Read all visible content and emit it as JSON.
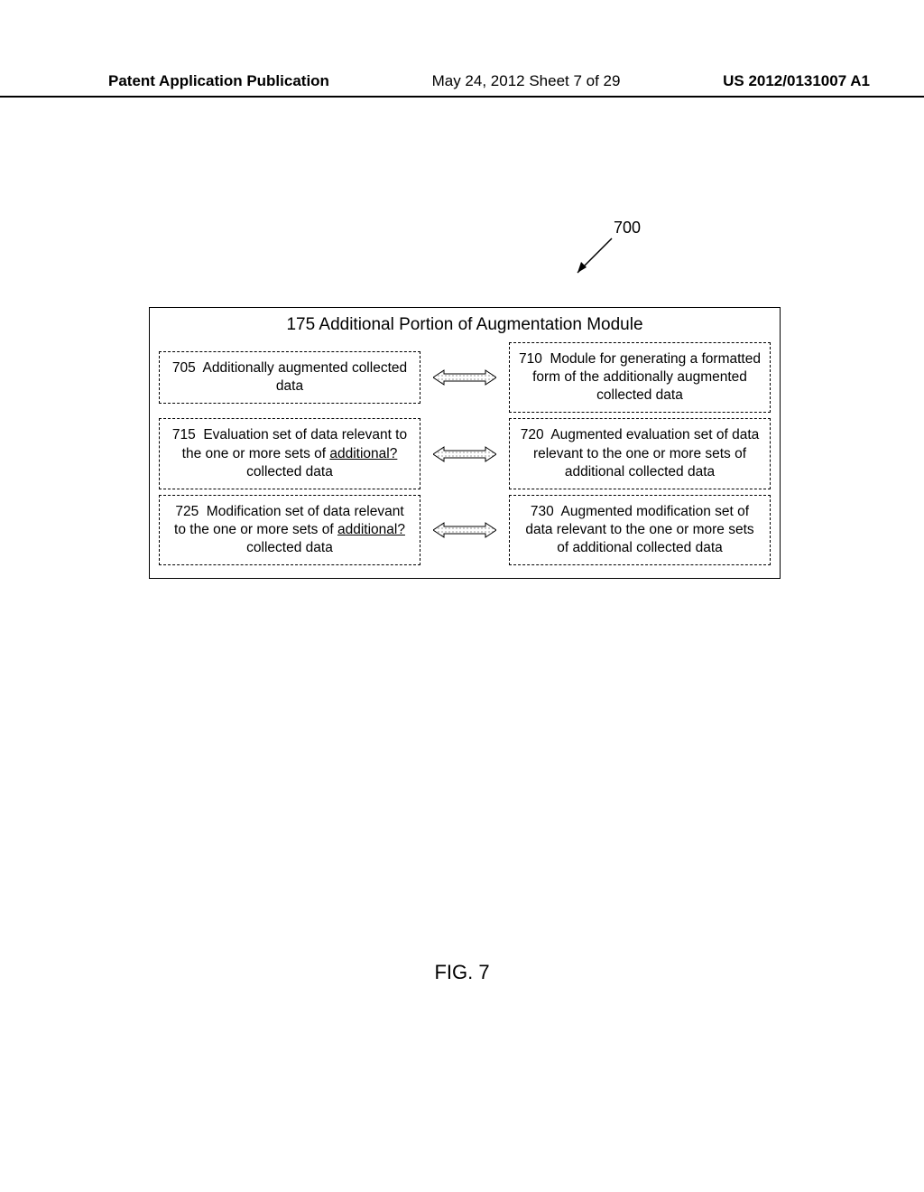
{
  "header": {
    "left": "Patent Application Publication",
    "mid": "May 24, 2012  Sheet 7 of 29",
    "right": "US 2012/0131007 A1"
  },
  "figref": "700",
  "module": {
    "title": "175 Additional Portion of  Augmentation Module",
    "rows": [
      {
        "left": {
          "num": "705",
          "text": "Additionally augmented collected data",
          "underline_word": null
        },
        "right": {
          "num": "710",
          "text": "Module for generating a formatted form of the additionally augmented collected data",
          "underline_word": null
        }
      },
      {
        "left": {
          "num": "715",
          "text": "Evaluation set of data relevant to the one or more sets of additional? collected data",
          "underline_word": "additional?"
        },
        "right": {
          "num": "720",
          "text": "Augmented evaluation set of data relevant to the one or more sets of additional collected data",
          "underline_word": null
        }
      },
      {
        "left": {
          "num": "725",
          "text": "Modification set of data relevant to the one or more sets of additional? collected data",
          "underline_word": "additional?"
        },
        "right": {
          "num": "730",
          "text": "Augmented modification set of data relevant to the one or more sets of additional collected data",
          "underline_word": null
        }
      }
    ]
  },
  "figlabel": "FIG. 7",
  "style": {
    "hatch_fill": "#bfbfbf",
    "stroke": "#000000"
  }
}
